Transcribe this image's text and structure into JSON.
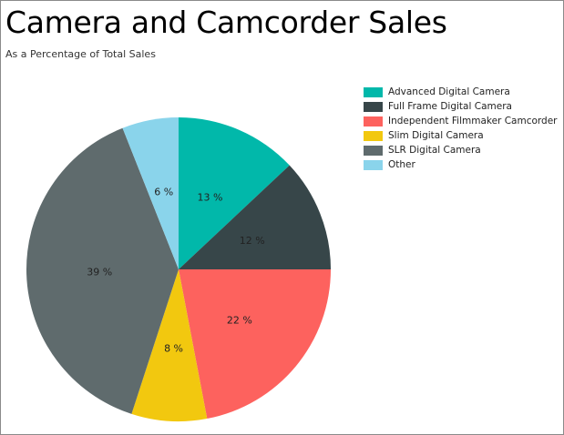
{
  "chart_data": {
    "type": "pie",
    "title": "Camera and Camcorder Sales",
    "subtitle": "As a Percentage of Total Sales",
    "legend_position": "right",
    "slices": [
      {
        "name": "Advanced Digital Camera",
        "value": 13,
        "label": "13 %",
        "color": "#01B8AA"
      },
      {
        "name": "Full Frame Digital Camera",
        "value": 12,
        "label": "12 %",
        "color": "#374649"
      },
      {
        "name": "Independent Filmmaker Camcorder",
        "value": 22,
        "label": "22 %",
        "color": "#FD625E"
      },
      {
        "name": "Slim Digital Camera",
        "value": 8,
        "label": "8 %",
        "color": "#F2C80F"
      },
      {
        "name": "SLR Digital Camera",
        "value": 39,
        "label": "39 %",
        "color": "#5F6B6D"
      },
      {
        "name": "Other",
        "value": 6,
        "label": "6 %",
        "color": "#8AD4EB"
      }
    ]
  }
}
